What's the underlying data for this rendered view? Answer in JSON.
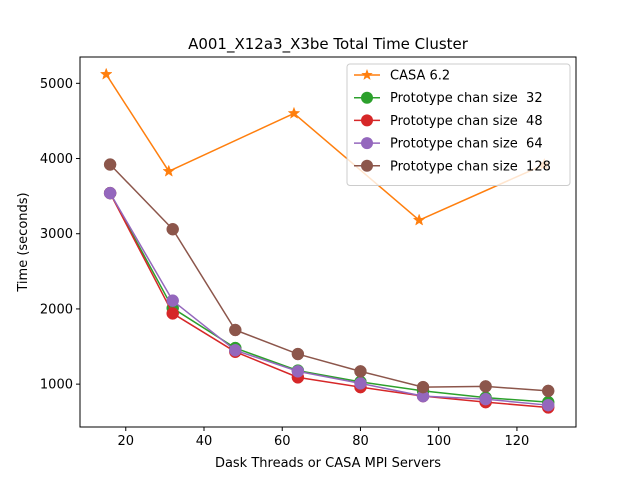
{
  "chart_data": {
    "type": "line",
    "title": "A001_X12a3_X3be Total Time Cluster",
    "xlabel": "Dask Threads or CASA MPI Servers",
    "ylabel": "Time (seconds)",
    "xlim": [
      8.3,
      135.1
    ],
    "ylim": [
      430,
      5350
    ],
    "xticks": [
      20,
      40,
      60,
      80,
      100,
      120
    ],
    "yticks": [
      1000,
      2000,
      3000,
      4000,
      5000
    ],
    "grid": false,
    "legend_position": "top-right",
    "series": [
      {
        "name": "CASA 6.2",
        "color": "#ff7f0e",
        "marker": "star",
        "x": [
          15,
          31,
          63,
          95,
          127
        ],
        "y": [
          5120,
          3830,
          4600,
          3180,
          3920
        ]
      },
      {
        "name": "Prototype chan size  32",
        "color": "#2ca02c",
        "marker": "circle",
        "x": [
          16,
          32,
          48,
          64,
          80,
          96,
          112,
          128
        ],
        "y": [
          3540,
          2010,
          1480,
          1180,
          1030,
          910,
          820,
          760
        ]
      },
      {
        "name": "Prototype chan size  48",
        "color": "#d62728",
        "marker": "circle",
        "x": [
          16,
          32,
          48,
          64,
          80,
          96,
          112,
          128
        ],
        "y": [
          3540,
          1940,
          1430,
          1090,
          960,
          840,
          760,
          690
        ]
      },
      {
        "name": "Prototype chan size  64",
        "color": "#9467bd",
        "marker": "circle",
        "x": [
          16,
          32,
          48,
          64,
          80,
          96,
          112,
          128
        ],
        "y": [
          3540,
          2110,
          1450,
          1170,
          1010,
          840,
          800,
          720
        ]
      },
      {
        "name": "Prototype chan size  128",
        "color": "#8c564b",
        "marker": "circle",
        "x": [
          16,
          32,
          48,
          64,
          80,
          96,
          112,
          128
        ],
        "y": [
          3920,
          3060,
          1720,
          1400,
          1170,
          960,
          970,
          910
        ]
      }
    ]
  }
}
